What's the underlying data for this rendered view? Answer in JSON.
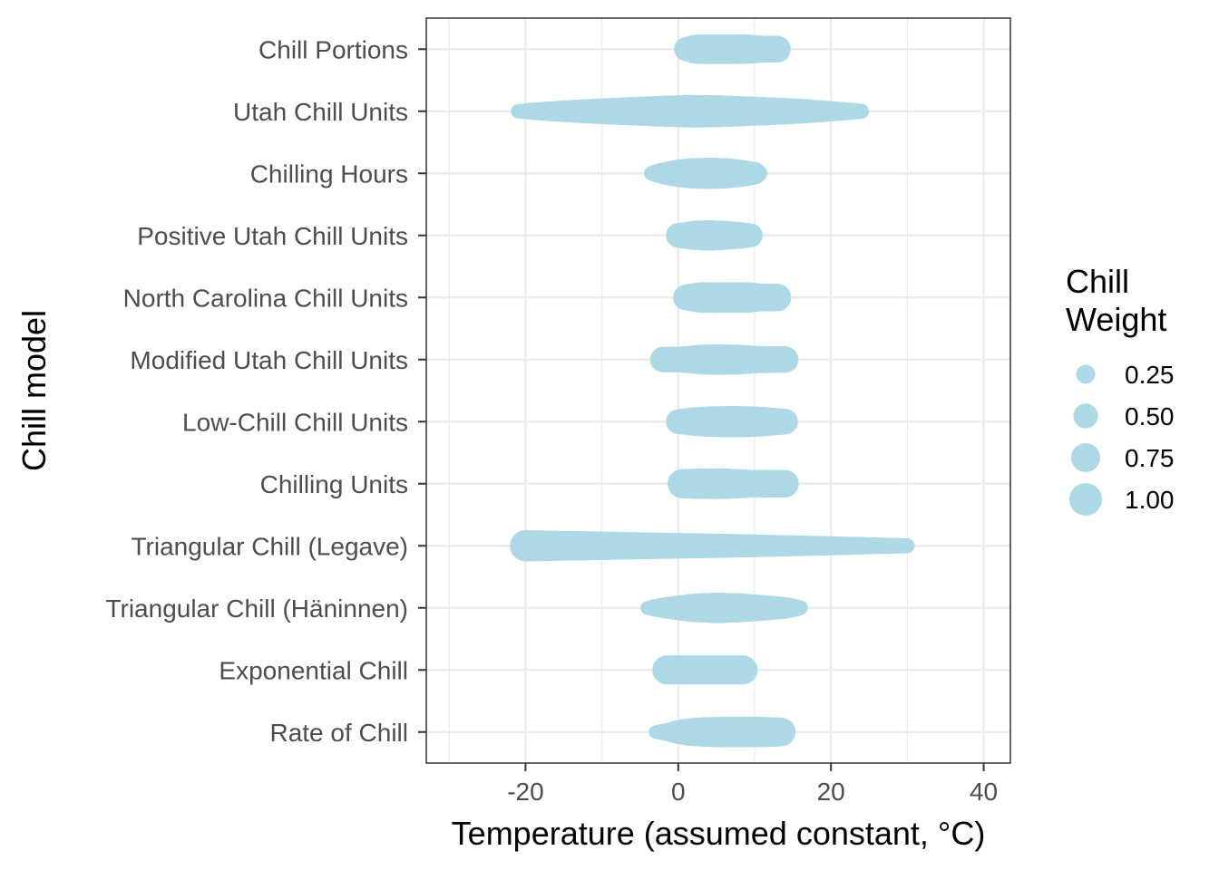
{
  "chart_data": {
    "type": "scatter",
    "xlabel": "Temperature (assumed constant, °C)",
    "ylabel": "Chill model",
    "xlim": [
      -33,
      43.5
    ],
    "xticks": [
      -20,
      0,
      20,
      40
    ],
    "xtick_labels": [
      "-20",
      "0",
      "20",
      "40"
    ],
    "grid": true,
    "point_color": "#add8e6",
    "categories": [
      "Chill Portions",
      "Utah Chill Units",
      "Chilling Hours",
      "Positive Utah Chill Units",
      "North Carolina Chill Units",
      "Modified Utah Chill Units",
      "Low-Chill Chill Units",
      "Chilling Units",
      "Triangular Chill (Legave)",
      "Triangular Chill (Häninnen)",
      "Exponential Chill",
      "Rate of Chill"
    ],
    "series": [
      {
        "category": "Chill Portions",
        "points": [
          [
            1.0,
            0.45
          ],
          [
            1.5,
            0.55
          ],
          [
            2.0,
            0.7
          ],
          [
            3.0,
            0.8
          ],
          [
            6.0,
            0.8
          ],
          [
            9.0,
            0.78
          ],
          [
            10.0,
            0.7
          ],
          [
            11.0,
            0.62
          ],
          [
            12.0,
            0.6
          ],
          [
            13.0,
            0.6
          ]
        ]
      },
      {
        "category": "Utah Chill Units",
        "points": [
          [
            -21.0,
            0.1
          ],
          [
            -15.0,
            0.35
          ],
          [
            -10.0,
            0.55
          ],
          [
            -5.0,
            0.75
          ],
          [
            0.0,
            0.95
          ],
          [
            2.0,
            1.0
          ],
          [
            5.0,
            0.95
          ],
          [
            10.0,
            0.75
          ],
          [
            15.0,
            0.55
          ],
          [
            20.0,
            0.3
          ],
          [
            24.0,
            0.12
          ]
        ]
      },
      {
        "category": "Chilling Hours",
        "points": [
          [
            -3.5,
            0.12
          ],
          [
            -2.0,
            0.35
          ],
          [
            0.0,
            0.65
          ],
          [
            2.0,
            0.85
          ],
          [
            4.0,
            0.9
          ],
          [
            6.0,
            0.85
          ],
          [
            8.0,
            0.65
          ],
          [
            10.0,
            0.4
          ],
          [
            10.5,
            0.2
          ]
        ]
      },
      {
        "category": "Positive Utah Chill Units",
        "points": [
          [
            0.0,
            0.5
          ],
          [
            1.0,
            0.6
          ],
          [
            2.0,
            0.75
          ],
          [
            4.0,
            0.85
          ],
          [
            6.0,
            0.75
          ],
          [
            8.0,
            0.6
          ],
          [
            9.5,
            0.45
          ]
        ]
      },
      {
        "category": "North Carolina Chill Units",
        "points": [
          [
            1.0,
            0.55
          ],
          [
            2.0,
            0.7
          ],
          [
            3.0,
            0.85
          ],
          [
            6.0,
            0.85
          ],
          [
            9.0,
            0.85
          ],
          [
            10.0,
            0.75
          ],
          [
            11.0,
            0.65
          ],
          [
            13.0,
            0.65
          ]
        ]
      },
      {
        "category": "Modified Utah Chill Units",
        "points": [
          [
            -2.0,
            0.55
          ],
          [
            0.0,
            0.55
          ],
          [
            1.5,
            0.65
          ],
          [
            3.0,
            0.8
          ],
          [
            5.0,
            0.85
          ],
          [
            8.0,
            0.8
          ],
          [
            10.0,
            0.65
          ],
          [
            12.0,
            0.6
          ],
          [
            14.0,
            0.6
          ]
        ]
      },
      {
        "category": "Low-Chill Chill Units",
        "points": [
          [
            0.0,
            0.5
          ],
          [
            2.0,
            0.7
          ],
          [
            4.0,
            0.85
          ],
          [
            7.0,
            0.9
          ],
          [
            10.0,
            0.85
          ],
          [
            12.0,
            0.7
          ],
          [
            14.0,
            0.55
          ]
        ]
      },
      {
        "category": "Chilling Units",
        "points": [
          [
            0.5,
            0.75
          ],
          [
            3.0,
            0.85
          ],
          [
            6.0,
            0.85
          ],
          [
            8.0,
            0.75
          ],
          [
            10.0,
            0.65
          ],
          [
            12.0,
            0.65
          ],
          [
            14.0,
            0.65
          ]
        ]
      },
      {
        "category": "Triangular Chill (Legave)",
        "points": [
          [
            -20.0,
            0.9
          ],
          [
            -15.0,
            0.8
          ],
          [
            -10.0,
            0.72
          ],
          [
            -5.0,
            0.62
          ],
          [
            0.0,
            0.55
          ],
          [
            5.0,
            0.48
          ],
          [
            10.0,
            0.4
          ],
          [
            15.0,
            0.32
          ],
          [
            20.0,
            0.25
          ],
          [
            25.0,
            0.18
          ],
          [
            30.0,
            0.12
          ]
        ]
      },
      {
        "category": "Triangular Chill (Häninnen)",
        "points": [
          [
            -4.0,
            0.1
          ],
          [
            -2.0,
            0.3
          ],
          [
            0.0,
            0.5
          ],
          [
            2.0,
            0.7
          ],
          [
            5.0,
            0.85
          ],
          [
            8.0,
            0.75
          ],
          [
            11.0,
            0.55
          ],
          [
            14.0,
            0.35
          ],
          [
            16.0,
            0.12
          ]
        ]
      },
      {
        "category": "Exponential Chill",
        "points": [
          [
            -1.5,
            0.75
          ],
          [
            0.0,
            0.75
          ],
          [
            3.0,
            0.75
          ],
          [
            6.0,
            0.75
          ],
          [
            8.5,
            0.75
          ]
        ]
      },
      {
        "category": "Rate of Chill",
        "points": [
          [
            -3.0,
            0.08
          ],
          [
            -1.5,
            0.2
          ],
          [
            0.0,
            0.45
          ],
          [
            2.0,
            0.7
          ],
          [
            4.0,
            0.8
          ],
          [
            6.0,
            0.85
          ],
          [
            8.0,
            0.85
          ],
          [
            10.0,
            0.85
          ],
          [
            12.0,
            0.8
          ],
          [
            13.5,
            0.72
          ]
        ]
      }
    ],
    "legend": {
      "title_lines": [
        "Chill",
        "Weight"
      ],
      "position": "right",
      "entries": [
        {
          "label": "0.25",
          "value": 0.25
        },
        {
          "label": "0.50",
          "value": 0.5
        },
        {
          "label": "0.75",
          "value": 0.75
        },
        {
          "label": "1.00",
          "value": 1.0
        }
      ]
    }
  }
}
